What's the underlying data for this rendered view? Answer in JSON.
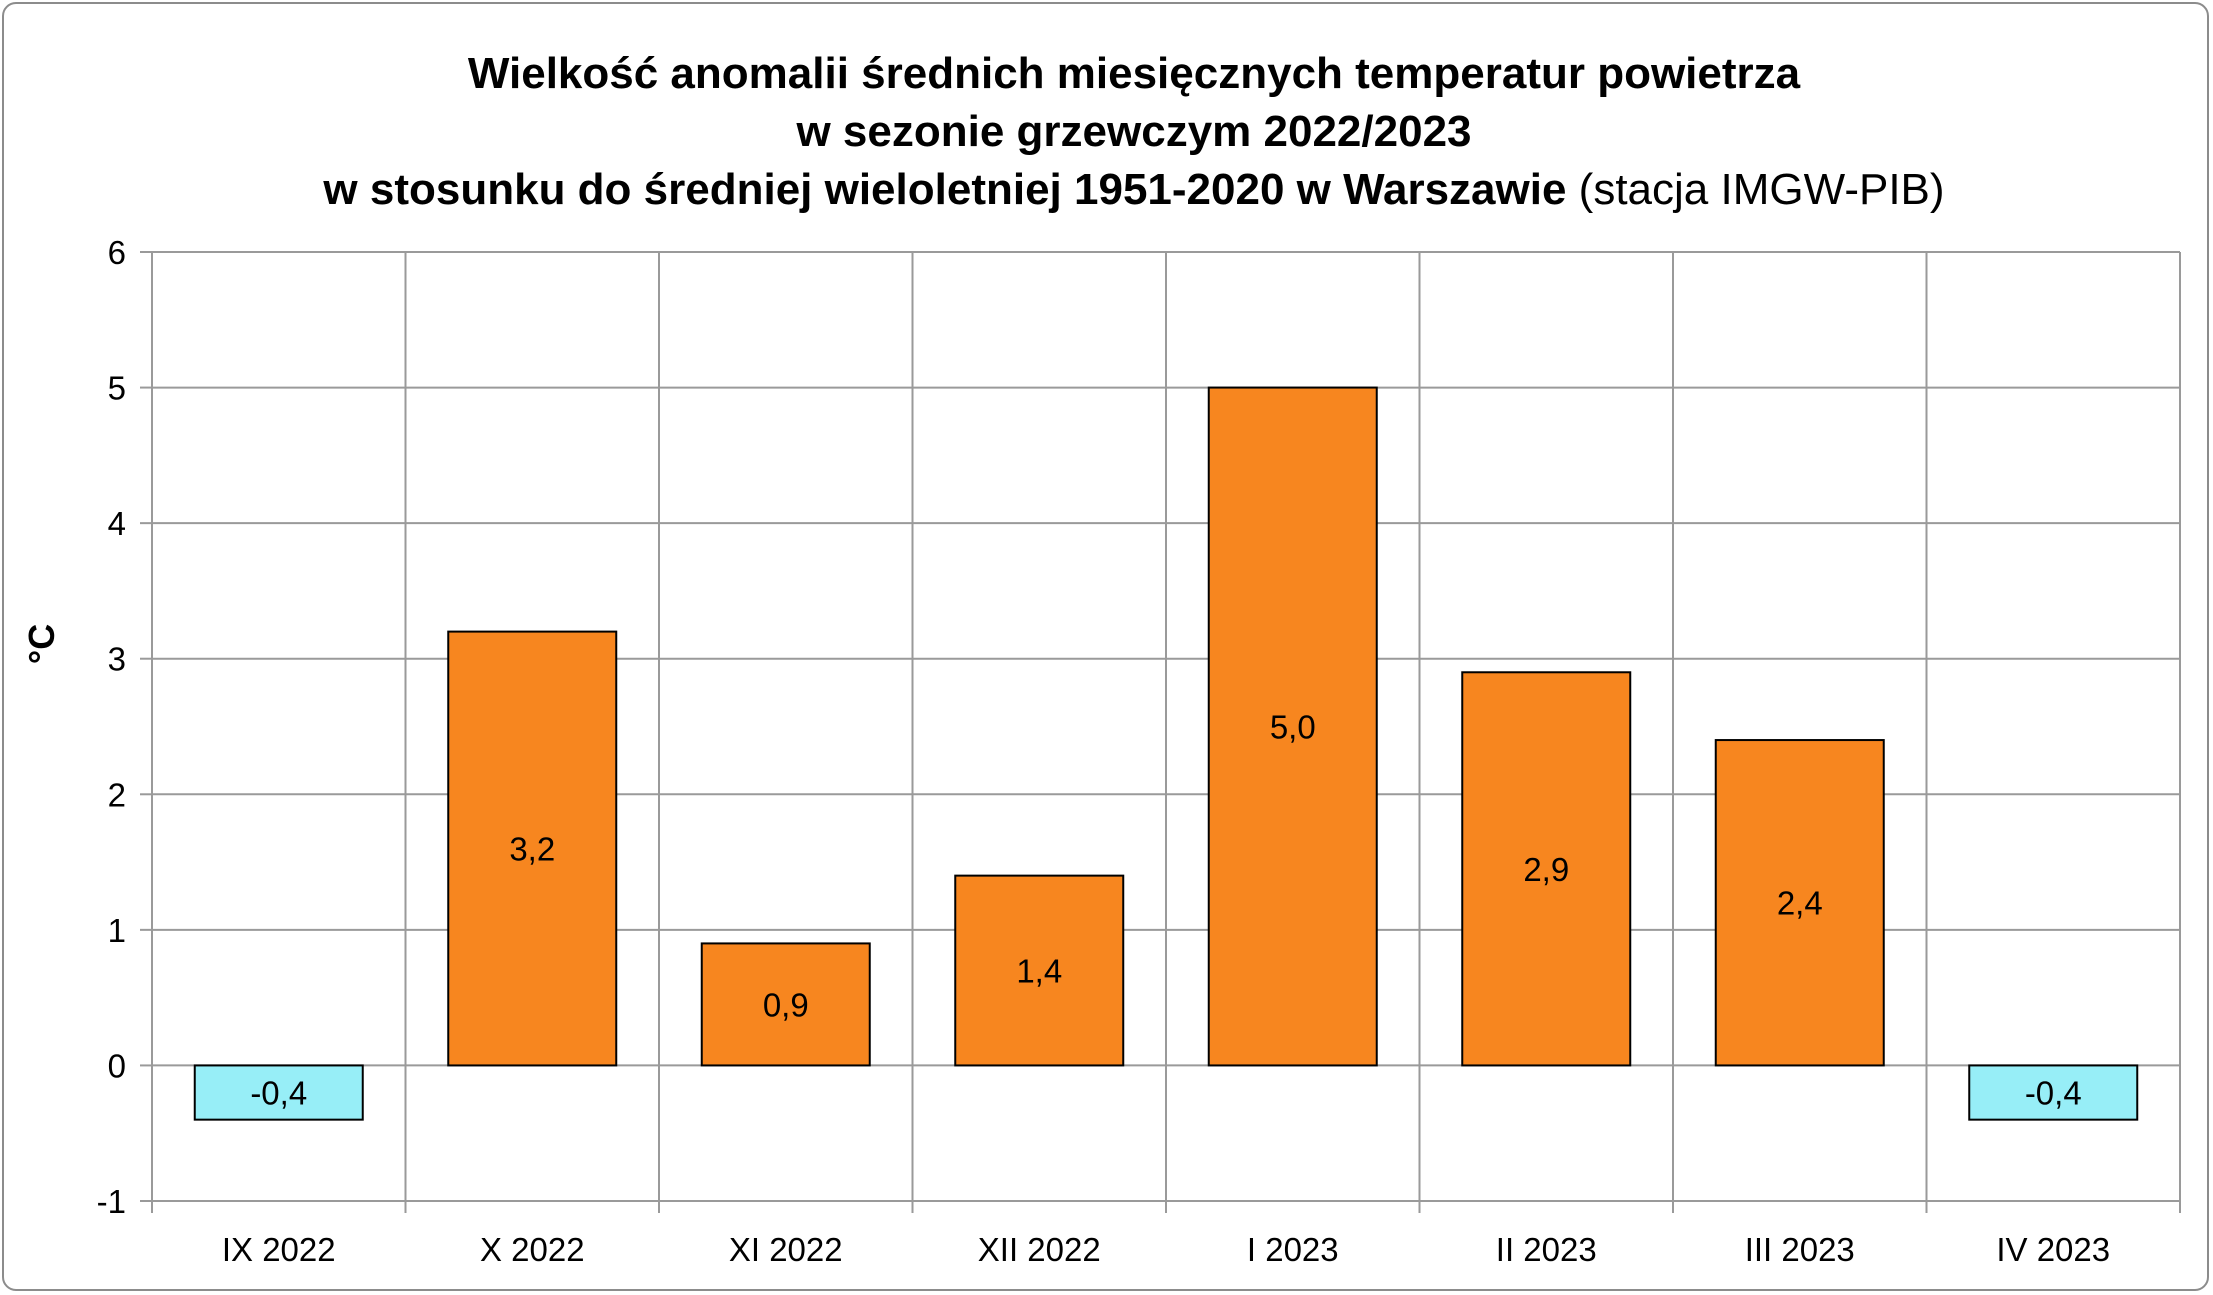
{
  "chart_data": {
    "type": "bar",
    "title": {
      "line1": "Wielkość anomalii średnich miesięcznych temperatur powietrza",
      "line2": "w sezonie grzewczym 2022/2023",
      "line3_bold": "w stosunku do średniej wieloletniej 1951-2020 w Warszawie",
      "line3_normal": " (stacja IMGW-PIB)"
    },
    "ylabel": "°C",
    "xlabel": "",
    "ylim": [
      -1,
      6
    ],
    "yticks": [
      -1,
      0,
      1,
      2,
      3,
      4,
      5,
      6
    ],
    "categories": [
      "IX 2022",
      "X 2022",
      "XI 2022",
      "XII 2022",
      "I 2023",
      "II 2023",
      "III 2023",
      "IV 2023"
    ],
    "values": [
      -0.4,
      3.2,
      0.9,
      1.4,
      5.0,
      2.9,
      2.4,
      -0.4
    ],
    "value_labels": [
      "-0,4",
      "3,2",
      "0,9",
      "1,4",
      "5,0",
      "2,9",
      "2,4",
      "-0,4"
    ],
    "grid": true,
    "colors": {
      "positive": "#f7861f",
      "negative": "#97eef7",
      "bar_border": "#000000",
      "grid": "#9a9a9a",
      "frame": "#8c8c8c"
    }
  }
}
